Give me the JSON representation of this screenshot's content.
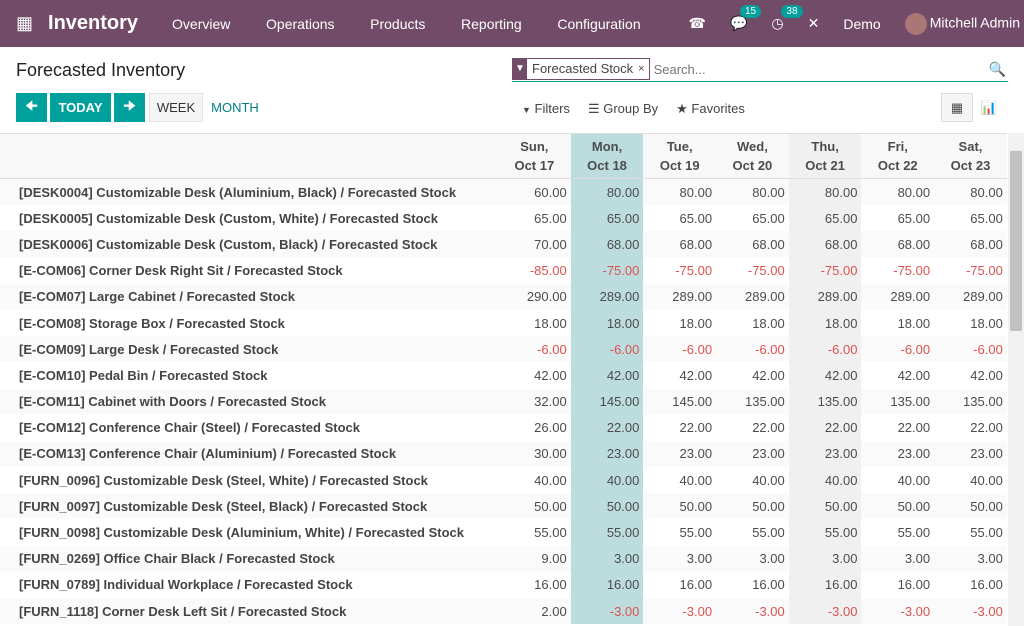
{
  "nav": {
    "app": "Inventory",
    "menu": [
      "Overview",
      "Operations",
      "Products",
      "Reporting",
      "Configuration"
    ],
    "messages_count": "15",
    "activities_count": "38",
    "company": "Demo",
    "user": "Mitchell Admin"
  },
  "page": {
    "title": "Forecasted Inventory"
  },
  "search": {
    "facet": "Forecasted Stock",
    "placeholder": "Search..."
  },
  "controls": {
    "today": "TODAY",
    "week": "WEEK",
    "month": "MONTH",
    "filters": "Filters",
    "group_by": "Group By",
    "favorites": "Favorites",
    "active_scale": "week"
  },
  "colors": {
    "nav": "#714b67",
    "accent": "#00a09d",
    "today_col": "#bcdcdd",
    "negative": "#d9534f"
  },
  "columns": [
    [
      "Sun,",
      "Oct 17"
    ],
    [
      "Mon,",
      "Oct 18"
    ],
    [
      "Tue,",
      "Oct 19"
    ],
    [
      "Wed,",
      "Oct 20"
    ],
    [
      "Thu,",
      "Oct 21"
    ],
    [
      "Fri,",
      "Oct 22"
    ],
    [
      "Sat,",
      "Oct 23"
    ]
  ],
  "rows": [
    {
      "product": "[DESK0004] Customizable Desk (Aluminium, Black)",
      "measure": "Forecasted Stock",
      "values": [
        "60.00",
        "80.00",
        "80.00",
        "80.00",
        "80.00",
        "80.00",
        "80.00"
      ]
    },
    {
      "product": "[DESK0005] Customizable Desk (Custom, White)",
      "measure": "Forecasted Stock",
      "values": [
        "65.00",
        "65.00",
        "65.00",
        "65.00",
        "65.00",
        "65.00",
        "65.00"
      ]
    },
    {
      "product": "[DESK0006] Customizable Desk (Custom, Black)",
      "measure": "Forecasted Stock",
      "values": [
        "70.00",
        "68.00",
        "68.00",
        "68.00",
        "68.00",
        "68.00",
        "68.00"
      ]
    },
    {
      "product": "[E-COM06] Corner Desk Right Sit",
      "measure": "Forecasted Stock",
      "values": [
        "-85.00",
        "-75.00",
        "-75.00",
        "-75.00",
        "-75.00",
        "-75.00",
        "-75.00"
      ]
    },
    {
      "product": "[E-COM07] Large Cabinet",
      "measure": "Forecasted Stock",
      "values": [
        "290.00",
        "289.00",
        "289.00",
        "289.00",
        "289.00",
        "289.00",
        "289.00"
      ]
    },
    {
      "product": "[E-COM08] Storage Box",
      "measure": "Forecasted Stock",
      "values": [
        "18.00",
        "18.00",
        "18.00",
        "18.00",
        "18.00",
        "18.00",
        "18.00"
      ]
    },
    {
      "product": "[E-COM09] Large Desk",
      "measure": "Forecasted Stock",
      "values": [
        "-6.00",
        "-6.00",
        "-6.00",
        "-6.00",
        "-6.00",
        "-6.00",
        "-6.00"
      ]
    },
    {
      "product": "[E-COM10] Pedal Bin",
      "measure": "Forecasted Stock",
      "values": [
        "42.00",
        "42.00",
        "42.00",
        "42.00",
        "42.00",
        "42.00",
        "42.00"
      ]
    },
    {
      "product": "[E-COM11] Cabinet with Doors",
      "measure": "Forecasted Stock",
      "values": [
        "32.00",
        "145.00",
        "145.00",
        "135.00",
        "135.00",
        "135.00",
        "135.00"
      ]
    },
    {
      "product": "[E-COM12] Conference Chair (Steel)",
      "measure": "Forecasted Stock",
      "values": [
        "26.00",
        "22.00",
        "22.00",
        "22.00",
        "22.00",
        "22.00",
        "22.00"
      ]
    },
    {
      "product": "[E-COM13] Conference Chair (Aluminium)",
      "measure": "Forecasted Stock",
      "values": [
        "30.00",
        "23.00",
        "23.00",
        "23.00",
        "23.00",
        "23.00",
        "23.00"
      ]
    },
    {
      "product": "[FURN_0096] Customizable Desk (Steel, White)",
      "measure": "Forecasted Stock",
      "values": [
        "40.00",
        "40.00",
        "40.00",
        "40.00",
        "40.00",
        "40.00",
        "40.00"
      ]
    },
    {
      "product": "[FURN_0097] Customizable Desk (Steel, Black)",
      "measure": "Forecasted Stock",
      "values": [
        "50.00",
        "50.00",
        "50.00",
        "50.00",
        "50.00",
        "50.00",
        "50.00"
      ]
    },
    {
      "product": "[FURN_0098] Customizable Desk (Aluminium, White)",
      "measure": "Forecasted Stock",
      "values": [
        "55.00",
        "55.00",
        "55.00",
        "55.00",
        "55.00",
        "55.00",
        "55.00"
      ]
    },
    {
      "product": "[FURN_0269] Office Chair Black",
      "measure": "Forecasted Stock",
      "values": [
        "9.00",
        "3.00",
        "3.00",
        "3.00",
        "3.00",
        "3.00",
        "3.00"
      ]
    },
    {
      "product": "[FURN_0789] Individual Workplace",
      "measure": "Forecasted Stock",
      "values": [
        "16.00",
        "16.00",
        "16.00",
        "16.00",
        "16.00",
        "16.00",
        "16.00"
      ]
    },
    {
      "product": "[FURN_1118] Corner Desk Left Sit",
      "measure": "Forecasted Stock",
      "values": [
        "2.00",
        "-3.00",
        "-3.00",
        "-3.00",
        "-3.00",
        "-3.00",
        "-3.00"
      ]
    }
  ]
}
